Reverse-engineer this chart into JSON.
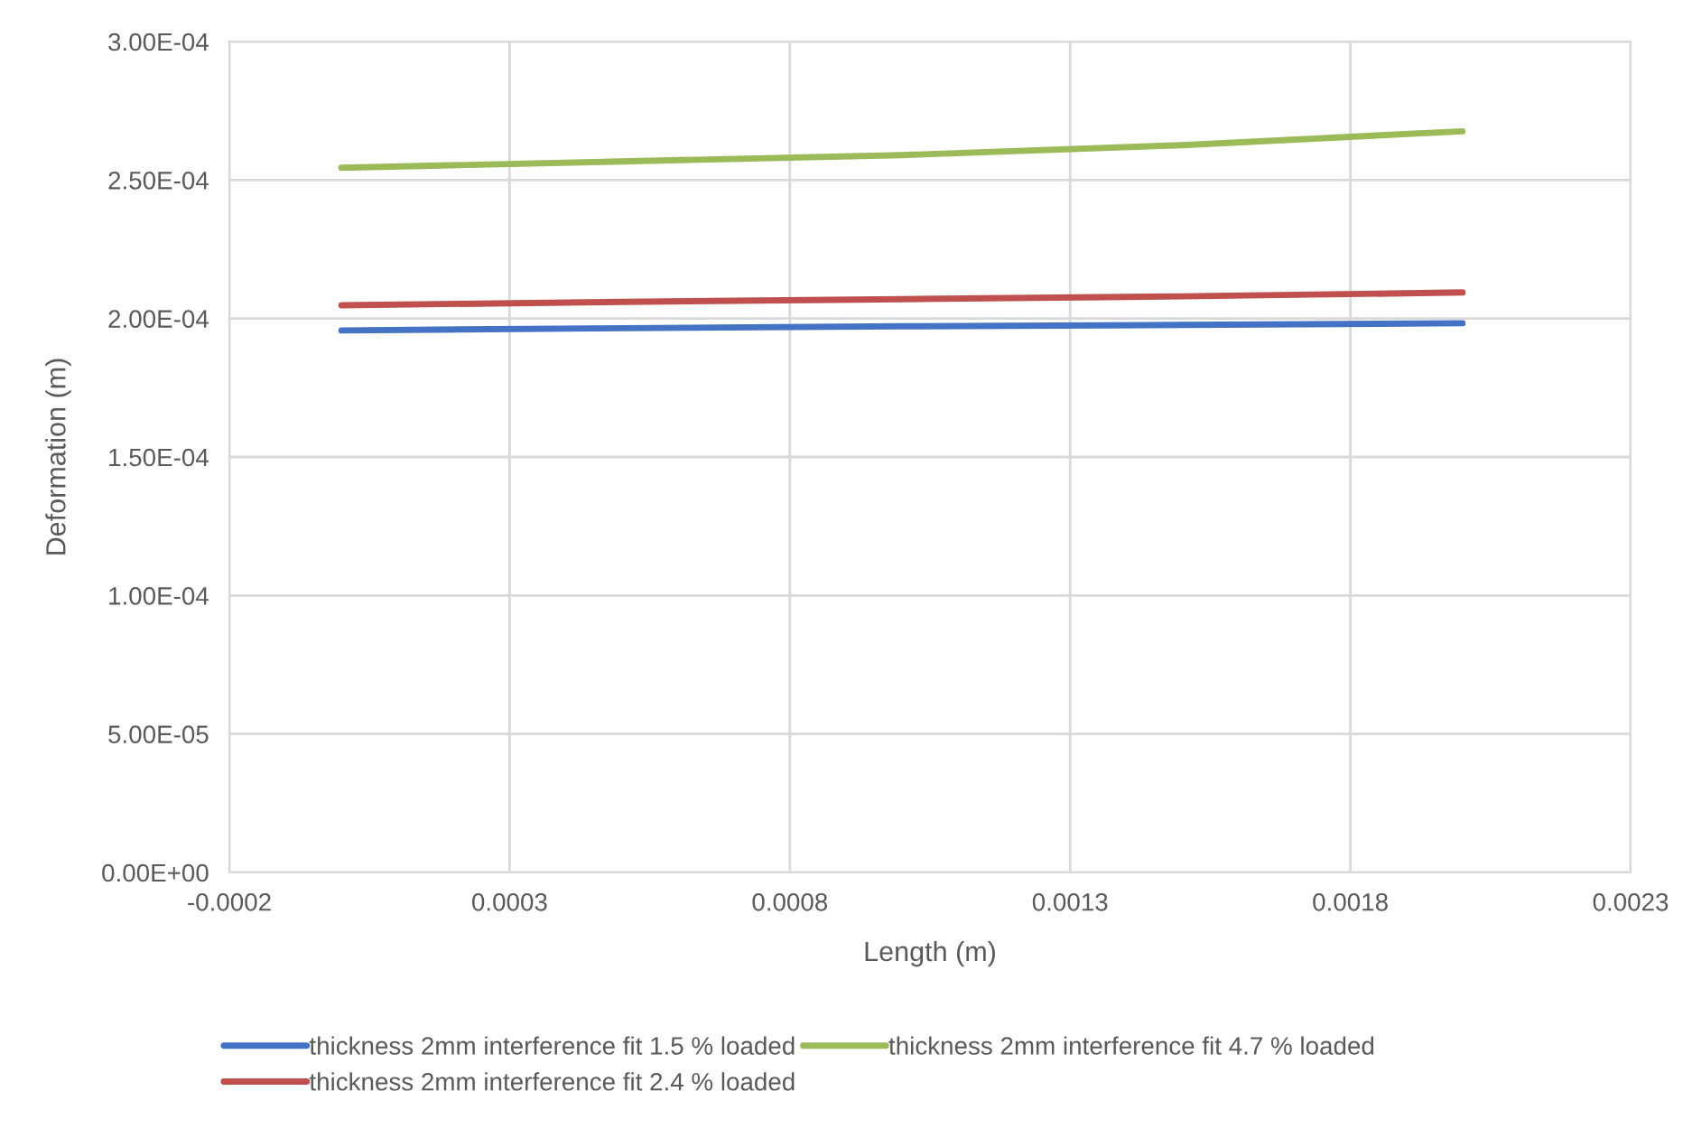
{
  "chart_data": {
    "type": "line",
    "xlabel": "Length (m)",
    "ylabel": "Deformation (m)",
    "x": [
      0,
      0.0005,
      0.001,
      0.0015,
      0.002
    ],
    "series": [
      {
        "name": "thickness 2mm interference fit 1.5 % loaded",
        "color": "#4472c4",
        "values": [
          0.0001957,
          0.0001965,
          0.0001972,
          0.0001977,
          0.0001983
        ]
      },
      {
        "name": "thickness 2mm interference fit 2.4 % loaded",
        "color": "#c0504d",
        "values": [
          0.0002048,
          0.000206,
          0.000207,
          0.000208,
          0.0002094
        ]
      },
      {
        "name": "thickness 2mm interference fit 4.7 % loaded",
        "color": "#9bbb59",
        "values": [
          0.0002544,
          0.0002567,
          0.000259,
          0.0002626,
          0.0002676
        ]
      }
    ],
    "xlim": [
      -0.0002,
      0.0023
    ],
    "xticks": [
      -0.0002,
      0.0003,
      0.0008,
      0.0013,
      0.0018,
      0.0023
    ],
    "ylim": [
      0,
      0.0003
    ],
    "yticks": [
      {
        "value": 0,
        "label": "0.00E+00"
      },
      {
        "value": 5e-05,
        "label": "5.00E-05"
      },
      {
        "value": 0.0001,
        "label": "1.00E-04"
      },
      {
        "value": 0.00015,
        "label": "1.50E-04"
      },
      {
        "value": 0.0002,
        "label": "2.00E-04"
      },
      {
        "value": 0.00025,
        "label": "2.50E-04"
      },
      {
        "value": 0.0003,
        "label": "3.00E-04"
      }
    ],
    "grid": true,
    "legend": "bottom",
    "marker": "none",
    "line_style": "solid"
  }
}
